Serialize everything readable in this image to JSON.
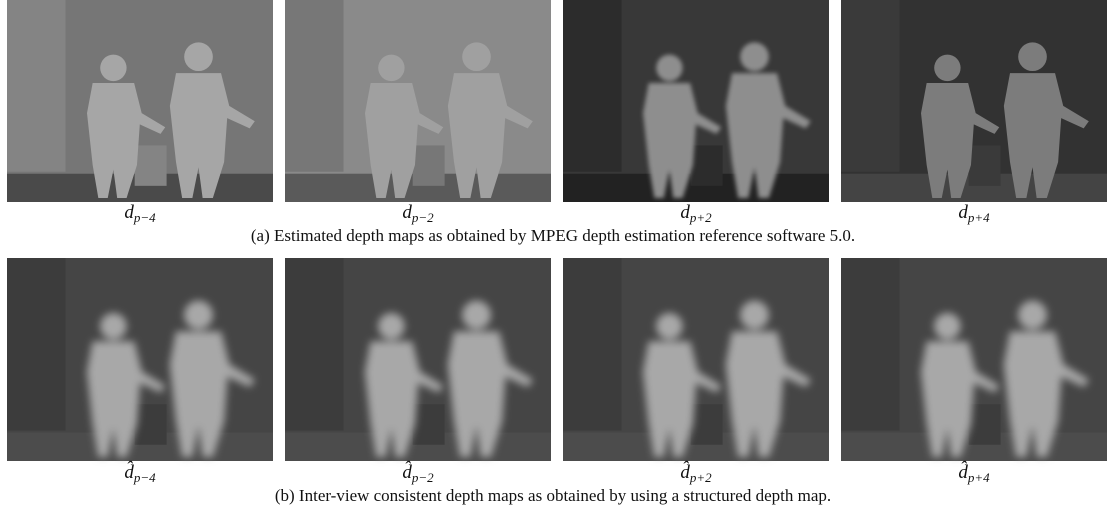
{
  "rows": [
    {
      "panels": [
        {
          "label": {
            "base": "d",
            "sub": "p−4"
          }
        },
        {
          "label": {
            "base": "d",
            "sub": "p−2"
          }
        },
        {
          "label": {
            "base": "d",
            "sub": "p+2"
          }
        },
        {
          "label": {
            "base": "d",
            "sub": "p+4"
          }
        }
      ],
      "caption": "(a) Estimated depth maps as obtained by MPEG depth estimation reference software 5.0."
    },
    {
      "panels": [
        {
          "label": {
            "base": "d̂",
            "sub": "p−4"
          }
        },
        {
          "label": {
            "base": "d̂",
            "sub": "p−2"
          }
        },
        {
          "label": {
            "base": "d̂",
            "sub": "p+2"
          }
        },
        {
          "label": {
            "base": "d̂",
            "sub": "p+4"
          }
        }
      ],
      "caption": "(b) Inter-view consistent depth maps as obtained by using a structured depth map."
    }
  ]
}
